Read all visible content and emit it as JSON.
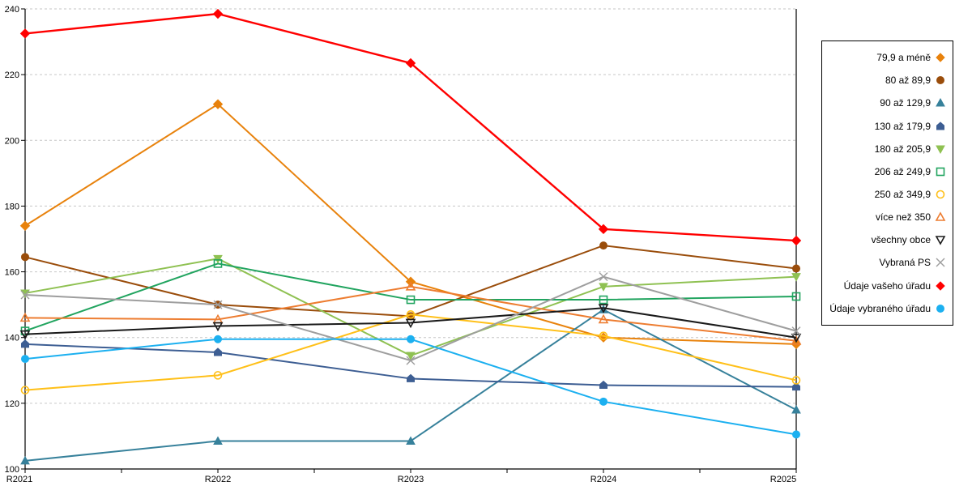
{
  "chart_data": {
    "type": "line",
    "title": "",
    "xlabel": "",
    "ylabel": "",
    "categories": [
      "R2021",
      "R2022",
      "R2023",
      "R2024",
      "R2025"
    ],
    "ylim": [
      100,
      240
    ],
    "ytick_step": 20,
    "y_tick_labels": [
      "240",
      "220",
      "200",
      "180",
      "160",
      "140",
      "120",
      "100"
    ],
    "grid": "horizontal-dashed",
    "legend_position": "right",
    "series": [
      {
        "name": "79,9 a méně",
        "color": "#E8820C",
        "marker": "diamond",
        "fill": "filled",
        "values": [
          174,
          211,
          157,
          140,
          138
        ]
      },
      {
        "name": "80 až 89,9",
        "color": "#9A4D0B",
        "marker": "circle",
        "fill": "filled",
        "values": [
          164.5,
          150,
          146.5,
          168,
          161
        ]
      },
      {
        "name": "90 až 129,9",
        "color": "#37819B",
        "marker": "triangle-up",
        "fill": "filled",
        "values": [
          102.5,
          108.5,
          108.5,
          148.5,
          118
        ]
      },
      {
        "name": "130 až 179,9",
        "color": "#3D5E93",
        "marker": "pentagon",
        "fill": "filled",
        "values": [
          138,
          135.5,
          127.5,
          125.5,
          125
        ]
      },
      {
        "name": "180 až 205,9",
        "color": "#8FC152",
        "marker": "triangle-down",
        "fill": "filled",
        "values": [
          153.5,
          164,
          134.5,
          155.5,
          158.5
        ]
      },
      {
        "name": "206 až 249,9",
        "color": "#21A45F",
        "marker": "square",
        "fill": "open",
        "values": [
          142,
          162.5,
          151.5,
          151.5,
          152.5
        ]
      },
      {
        "name": "250 až 349,9",
        "color": "#FFC019",
        "marker": "circle",
        "fill": "open",
        "values": [
          124,
          128.5,
          147,
          140.5,
          127
        ]
      },
      {
        "name": "více než 350",
        "color": "#ED7D31",
        "marker": "triangle-up",
        "fill": "open",
        "values": [
          146,
          145.5,
          155.5,
          145.5,
          139
        ]
      },
      {
        "name": "všechny obce",
        "color": "#1A1A1A",
        "marker": "triangle-down",
        "fill": "open",
        "values": [
          141,
          143.5,
          144.5,
          149,
          140
        ]
      },
      {
        "name": "Vybraná PS",
        "color": "#9E9E9E",
        "marker": "x",
        "fill": "open",
        "values": [
          153,
          150,
          133,
          158.5,
          142
        ]
      },
      {
        "name": "Údaje vašeho úřadu",
        "color": "#FF0000",
        "marker": "diamond",
        "fill": "filled",
        "values": [
          232.5,
          238.5,
          223.5,
          173,
          169.5
        ]
      },
      {
        "name": "Údaje vybraného úřadu",
        "color": "#1CB0F0",
        "marker": "circle",
        "fill": "filled",
        "values": [
          133.5,
          139.5,
          139.5,
          120.5,
          110.5
        ]
      }
    ]
  },
  "style_colors": {
    "axis": "#000000",
    "gridline": "#C6C6C6",
    "background": "#FFFFFF",
    "legend_border": "#000000"
  }
}
